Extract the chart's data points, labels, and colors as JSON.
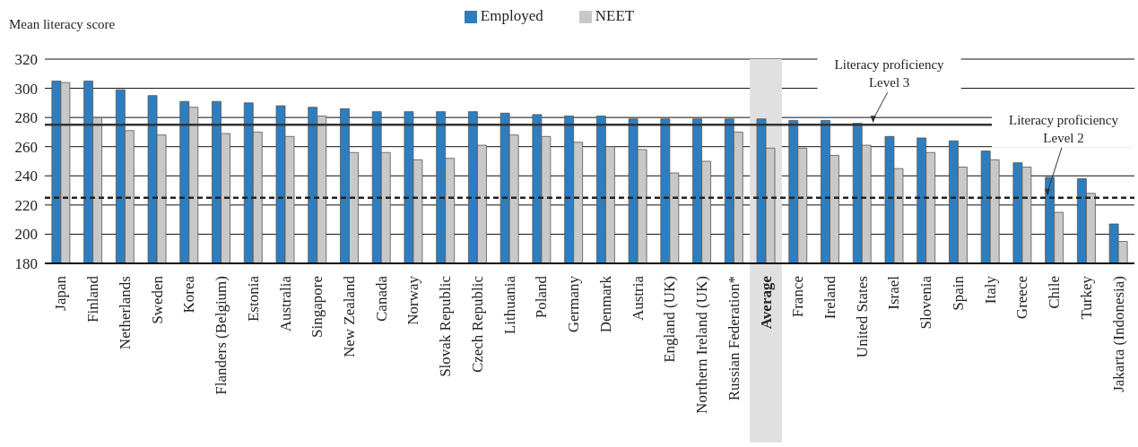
{
  "chart_data": {
    "type": "bar",
    "ylabel": "Mean literacy score",
    "categories": [
      "Japan",
      "Finland",
      "Netherlands",
      "Sweden",
      "Korea",
      "Flanders (Belgium)",
      "Estonia",
      "Australia",
      "Singapore",
      "New Zealand",
      "Canada",
      "Norway",
      "Slovak Republic",
      "Czech Republic",
      "Lithuania",
      "Poland",
      "Germany",
      "Denmark",
      "Austria",
      "England (UK)",
      "Northern Ireland (UK)",
      "Russian Federation*",
      "Average",
      "France",
      "Ireland",
      "United States",
      "Israel",
      "Slovenia",
      "Spain",
      "Italy",
      "Greece",
      "Chile",
      "Turkey",
      "Jakarta (Indonesia)"
    ],
    "series": [
      {
        "name": "Employed",
        "color": "#2e7ebf",
        "values": [
          305,
          305,
          299,
          295,
          291,
          291,
          290,
          288,
          287,
          286,
          284,
          284,
          284,
          284,
          283,
          282,
          281,
          281,
          279,
          279,
          279,
          279,
          279,
          278,
          278,
          276,
          267,
          266,
          264,
          257,
          249,
          239,
          238,
          207
        ]
      },
      {
        "name": "NEET",
        "color": "#c8c8c8",
        "values": [
          304,
          280,
          271,
          268,
          287,
          269,
          270,
          267,
          281,
          256,
          256,
          251,
          252,
          261,
          268,
          267,
          263,
          260,
          258,
          242,
          250,
          270,
          259,
          259,
          254,
          261,
          245,
          256,
          246,
          251,
          246,
          215,
          228,
          195
        ]
      }
    ],
    "ylim": [
      180,
      320
    ],
    "yticks": [
      180,
      200,
      220,
      240,
      260,
      280,
      300,
      320
    ],
    "grid": "y",
    "legend": "top",
    "ref_lines": [
      {
        "axis": "y",
        "value": 275,
        "label": "Literacy proficiency\nLevel 3",
        "color": "#333333",
        "line_style": "solid"
      },
      {
        "axis": "y",
        "value": 225,
        "label": "Literacy proficiency\nLevel 2",
        "color": "#222222",
        "line_style": "dashed"
      }
    ],
    "bands": [
      {
        "axis": "x",
        "from": "Average",
        "to": "Average",
        "color": "#e0e0e0"
      }
    ]
  }
}
